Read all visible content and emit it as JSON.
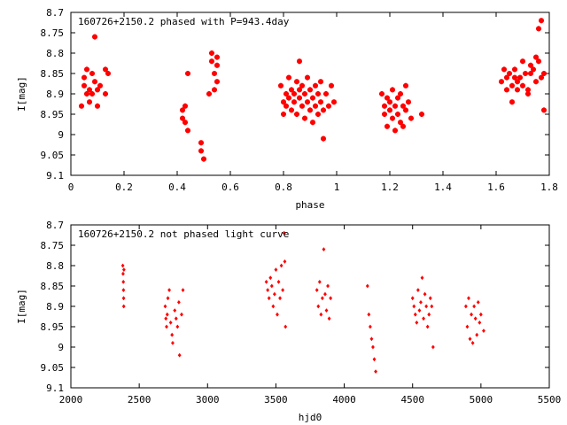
{
  "chart_data": [
    {
      "type": "scatter",
      "title": "160726+2150.2 phased with P=943.4day",
      "xlabel": "phase",
      "ylabel": "I[mag]",
      "xlim": [
        0,
        1.8
      ],
      "ylim": [
        9.1,
        8.7
      ],
      "y_inverted": true,
      "grid": false,
      "marker": "asterisk",
      "color": "#ff0000",
      "xticks": [
        0,
        0.2,
        0.4,
        0.6,
        0.8,
        1,
        1.2,
        1.4,
        1.6,
        1.8
      ],
      "xtick_labels": [
        "0",
        "0.2",
        "0.4",
        "0.6",
        "0.8",
        "1",
        "1.2",
        "1.4",
        "1.6",
        "1.8"
      ],
      "yticks": [
        8.7,
        8.75,
        8.8,
        8.85,
        8.9,
        8.95,
        9,
        9.05,
        9.1
      ],
      "ytick_labels": [
        "8.7",
        "8.75",
        "8.8",
        "8.85",
        "8.9",
        "8.95",
        "9",
        "9.05",
        "9.1"
      ],
      "points": [
        [
          0.04,
          8.93
        ],
        [
          0.05,
          8.88
        ],
        [
          0.05,
          8.86
        ],
        [
          0.06,
          8.9
        ],
        [
          0.06,
          8.84
        ],
        [
          0.07,
          8.89
        ],
        [
          0.07,
          8.92
        ],
        [
          0.08,
          8.85
        ],
        [
          0.08,
          8.9
        ],
        [
          0.09,
          8.76
        ],
        [
          0.09,
          8.87
        ],
        [
          0.1,
          8.93
        ],
        [
          0.1,
          8.89
        ],
        [
          0.11,
          8.88
        ],
        [
          0.13,
          8.84
        ],
        [
          0.13,
          8.9
        ],
        [
          0.14,
          8.85
        ],
        [
          0.42,
          8.94
        ],
        [
          0.42,
          8.96
        ],
        [
          0.43,
          8.93
        ],
        [
          0.43,
          8.97
        ],
        [
          0.44,
          8.99
        ],
        [
          0.44,
          8.85
        ],
        [
          0.49,
          9.02
        ],
        [
          0.49,
          9.04
        ],
        [
          0.5,
          9.06
        ],
        [
          0.52,
          8.9
        ],
        [
          0.53,
          8.8
        ],
        [
          0.53,
          8.82
        ],
        [
          0.54,
          8.89
        ],
        [
          0.54,
          8.85
        ],
        [
          0.55,
          8.81
        ],
        [
          0.55,
          8.83
        ],
        [
          0.55,
          8.87
        ],
        [
          0.79,
          8.88
        ],
        [
          0.8,
          8.92
        ],
        [
          0.8,
          8.95
        ],
        [
          0.81,
          8.9
        ],
        [
          0.81,
          8.93
        ],
        [
          0.82,
          8.86
        ],
        [
          0.82,
          8.91
        ],
        [
          0.83,
          8.89
        ],
        [
          0.83,
          8.94
        ],
        [
          0.84,
          8.9
        ],
        [
          0.84,
          8.92
        ],
        [
          0.85,
          8.87
        ],
        [
          0.85,
          8.95
        ],
        [
          0.86,
          8.89
        ],
        [
          0.86,
          8.91
        ],
        [
          0.86,
          8.82
        ],
        [
          0.87,
          8.93
        ],
        [
          0.87,
          8.88
        ],
        [
          0.88,
          8.9
        ],
        [
          0.88,
          8.96
        ],
        [
          0.89,
          8.92
        ],
        [
          0.89,
          8.86
        ],
        [
          0.9,
          8.94
        ],
        [
          0.9,
          8.89
        ],
        [
          0.91,
          8.91
        ],
        [
          0.91,
          8.97
        ],
        [
          0.92,
          8.88
        ],
        [
          0.92,
          8.93
        ],
        [
          0.93,
          8.9
        ],
        [
          0.93,
          8.95
        ],
        [
          0.94,
          8.87
        ],
        [
          0.94,
          8.92
        ],
        [
          0.95,
          9.01
        ],
        [
          0.95,
          8.94
        ],
        [
          0.96,
          8.9
        ],
        [
          0.97,
          8.93
        ],
        [
          0.98,
          8.88
        ],
        [
          0.99,
          8.92
        ],
        [
          1.17,
          8.9
        ],
        [
          1.18,
          8.93
        ],
        [
          1.18,
          8.95
        ],
        [
          1.19,
          8.91
        ],
        [
          1.19,
          8.98
        ],
        [
          1.2,
          8.92
        ],
        [
          1.2,
          8.94
        ],
        [
          1.21,
          8.89
        ],
        [
          1.21,
          8.96
        ],
        [
          1.22,
          8.93
        ],
        [
          1.22,
          8.99
        ],
        [
          1.23,
          8.91
        ],
        [
          1.23,
          8.95
        ],
        [
          1.24,
          8.97
        ],
        [
          1.24,
          8.9
        ],
        [
          1.25,
          8.93
        ],
        [
          1.25,
          8.98
        ],
        [
          1.26,
          8.88
        ],
        [
          1.26,
          8.94
        ],
        [
          1.27,
          8.92
        ],
        [
          1.28,
          8.96
        ],
        [
          1.32,
          8.95
        ],
        [
          1.62,
          8.87
        ],
        [
          1.63,
          8.84
        ],
        [
          1.64,
          8.89
        ],
        [
          1.64,
          8.86
        ],
        [
          1.65,
          8.85
        ],
        [
          1.66,
          8.88
        ],
        [
          1.66,
          8.92
        ],
        [
          1.67,
          8.86
        ],
        [
          1.67,
          8.84
        ],
        [
          1.68,
          8.89
        ],
        [
          1.68,
          8.87
        ],
        [
          1.69,
          8.86
        ],
        [
          1.7,
          8.88
        ],
        [
          1.7,
          8.82
        ],
        [
          1.71,
          8.85
        ],
        [
          1.72,
          8.89
        ],
        [
          1.72,
          8.9
        ],
        [
          1.73,
          8.85
        ],
        [
          1.73,
          8.83
        ],
        [
          1.74,
          8.84
        ],
        [
          1.75,
          8.87
        ],
        [
          1.75,
          8.81
        ],
        [
          1.76,
          8.74
        ],
        [
          1.76,
          8.82
        ],
        [
          1.77,
          8.72
        ],
        [
          1.77,
          8.86
        ],
        [
          1.78,
          8.85
        ],
        [
          1.78,
          8.94
        ]
      ]
    },
    {
      "type": "scatter",
      "title": "160726+2150.2 not phased light curve",
      "xlabel": "hjd0",
      "ylabel": "I[mag]",
      "xlim": [
        2000,
        5500
      ],
      "ylim": [
        9.1,
        8.7
      ],
      "y_inverted": true,
      "grid": false,
      "marker": "diamond",
      "color": "#ff0000",
      "xticks": [
        2000,
        2500,
        3000,
        3500,
        4000,
        4500,
        5000,
        5500
      ],
      "xtick_labels": [
        "2000",
        "2500",
        "3000",
        "3500",
        "4000",
        "4500",
        "5000",
        "5500"
      ],
      "yticks": [
        8.7,
        8.75,
        8.8,
        8.85,
        8.9,
        8.95,
        9,
        9.05,
        9.1
      ],
      "ytick_labels": [
        "8.7",
        "8.75",
        "8.8",
        "8.85",
        "8.9",
        "8.95",
        "9",
        "9.05",
        "9.1"
      ],
      "points": [
        [
          2380,
          8.8
        ],
        [
          2382,
          8.82
        ],
        [
          2384,
          8.84
        ],
        [
          2385,
          8.86
        ],
        [
          2386,
          8.88
        ],
        [
          2387,
          8.9
        ],
        [
          2388,
          8.81
        ],
        [
          2690,
          8.9
        ],
        [
          2695,
          8.93
        ],
        [
          2700,
          8.95
        ],
        [
          2705,
          8.92
        ],
        [
          2710,
          8.88
        ],
        [
          2720,
          8.86
        ],
        [
          2730,
          8.94
        ],
        [
          2740,
          8.97
        ],
        [
          2745,
          8.99
        ],
        [
          2760,
          8.91
        ],
        [
          2770,
          8.93
        ],
        [
          2780,
          8.95
        ],
        [
          2790,
          8.89
        ],
        [
          2795,
          9.02
        ],
        [
          2810,
          8.92
        ],
        [
          2820,
          8.86
        ],
        [
          3430,
          8.84
        ],
        [
          3440,
          8.86
        ],
        [
          3450,
          8.88
        ],
        [
          3460,
          8.83
        ],
        [
          3470,
          8.85
        ],
        [
          3480,
          8.9
        ],
        [
          3490,
          8.87
        ],
        [
          3500,
          8.81
        ],
        [
          3510,
          8.92
        ],
        [
          3520,
          8.84
        ],
        [
          3530,
          8.88
        ],
        [
          3540,
          8.8
        ],
        [
          3550,
          8.86
        ],
        [
          3560,
          8.72
        ],
        [
          3565,
          8.79
        ],
        [
          3570,
          8.95
        ],
        [
          3800,
          8.86
        ],
        [
          3810,
          8.9
        ],
        [
          3820,
          8.84
        ],
        [
          3830,
          8.92
        ],
        [
          3840,
          8.88
        ],
        [
          3850,
          8.76
        ],
        [
          3860,
          8.87
        ],
        [
          3870,
          8.91
        ],
        [
          3880,
          8.85
        ],
        [
          3890,
          8.93
        ],
        [
          3900,
          8.88
        ],
        [
          4170,
          8.85
        ],
        [
          4180,
          8.92
        ],
        [
          4190,
          8.95
        ],
        [
          4200,
          8.98
        ],
        [
          4210,
          9.0
        ],
        [
          4220,
          9.03
        ],
        [
          4230,
          9.06
        ],
        [
          4500,
          8.88
        ],
        [
          4510,
          8.9
        ],
        [
          4520,
          8.92
        ],
        [
          4530,
          8.94
        ],
        [
          4540,
          8.86
        ],
        [
          4550,
          8.91
        ],
        [
          4560,
          8.89
        ],
        [
          4570,
          8.83
        ],
        [
          4580,
          8.93
        ],
        [
          4590,
          8.87
        ],
        [
          4600,
          8.9
        ],
        [
          4610,
          8.95
        ],
        [
          4620,
          8.92
        ],
        [
          4630,
          8.88
        ],
        [
          4640,
          8.9
        ],
        [
          4650,
          9.0
        ],
        [
          4890,
          8.9
        ],
        [
          4900,
          8.95
        ],
        [
          4910,
          8.88
        ],
        [
          4920,
          8.98
        ],
        [
          4930,
          8.92
        ],
        [
          4940,
          8.99
        ],
        [
          4950,
          8.9
        ],
        [
          4960,
          8.93
        ],
        [
          4970,
          8.97
        ],
        [
          4980,
          8.89
        ],
        [
          4990,
          8.94
        ],
        [
          5000,
          8.92
        ],
        [
          5020,
          8.96
        ]
      ]
    }
  ]
}
